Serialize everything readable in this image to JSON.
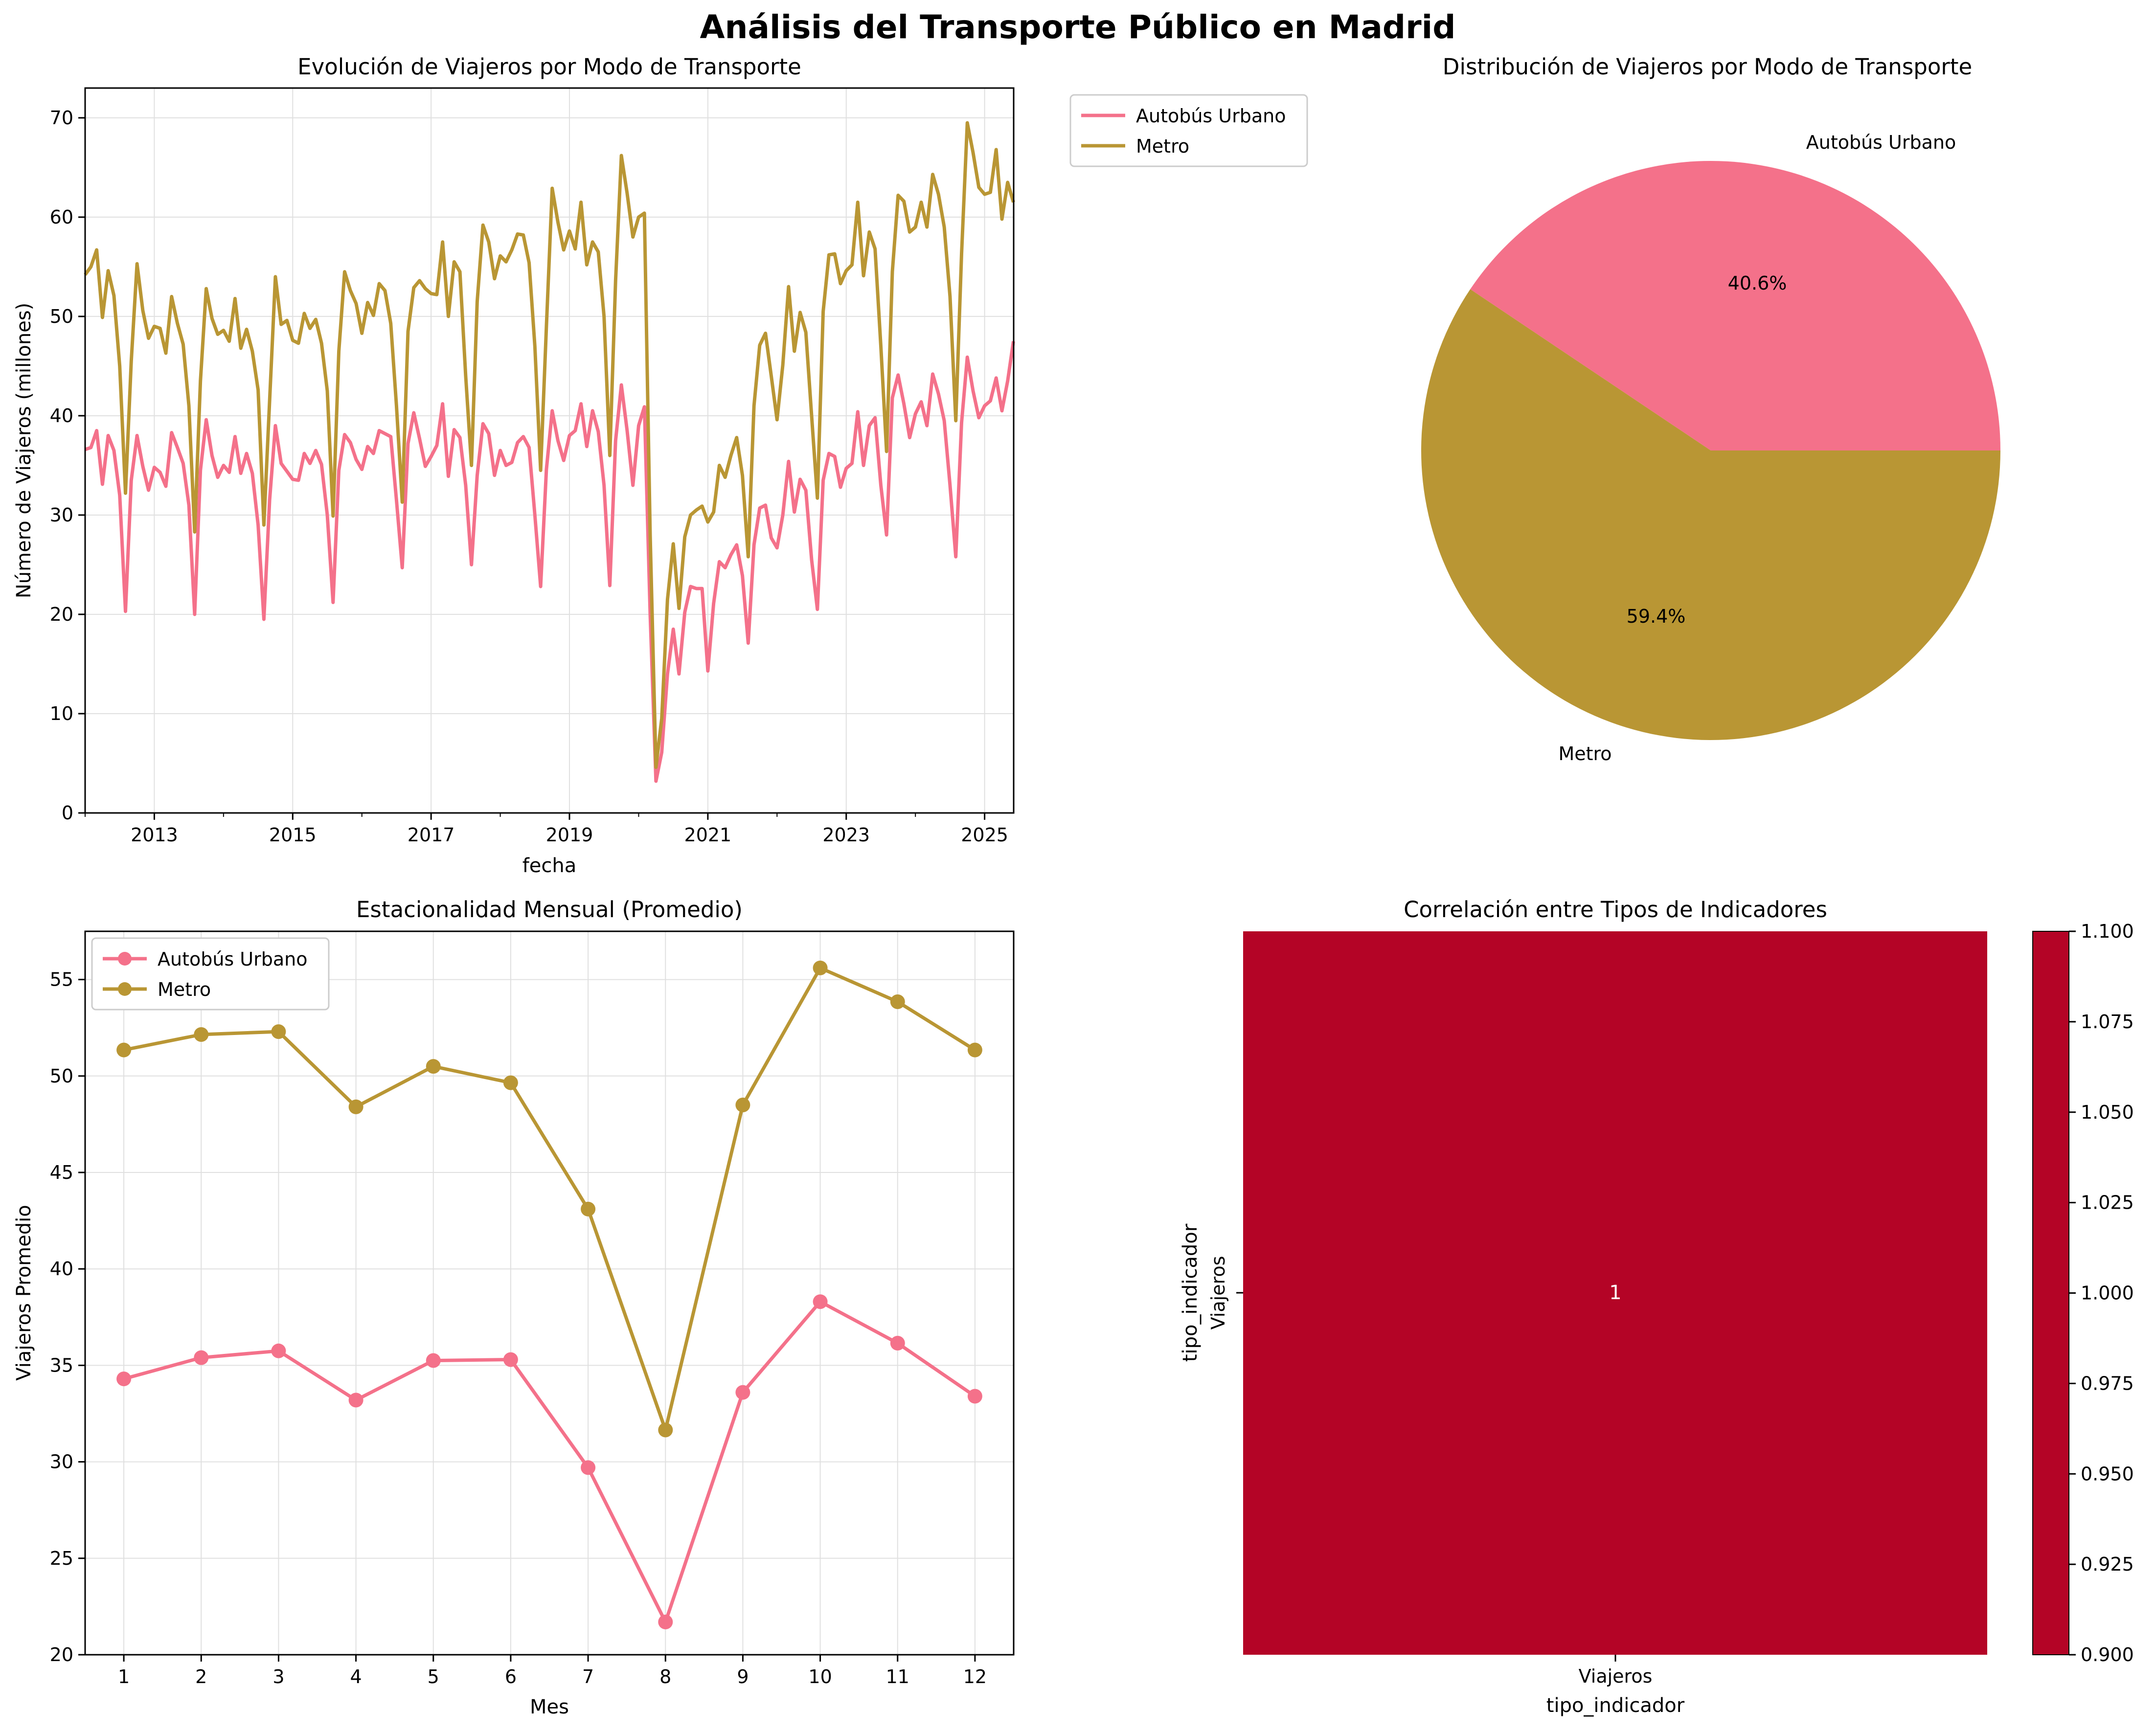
{
  "figure": {
    "title": "Análisis del Transporte Público en Madrid",
    "colors": {
      "bus": "#f4718a",
      "metro": "#b99634",
      "heat": "#b40426",
      "grid": "#e0e0e0"
    }
  },
  "chart_data": [
    {
      "id": "timeseries",
      "type": "line",
      "title": "Evolución de Viajeros por Modo de Transporte",
      "xlabel": "fecha",
      "ylabel": "Número de Viajeros (millones)",
      "xlim": [
        2012.0,
        2025.42
      ],
      "ylim": [
        0,
        73
      ],
      "x_ticks": [
        2013,
        2015,
        2017,
        2019,
        2021,
        2023,
        2025
      ],
      "y_ticks": [
        0,
        10,
        20,
        30,
        40,
        50,
        60,
        70
      ],
      "grid": true,
      "legend_position": "outside-right-top",
      "series": [
        {
          "name": "Autobús Urbano",
          "values": [
            36.6,
            36.8,
            38.5,
            33.1,
            38.0,
            36.5,
            32.0,
            20.3,
            33.5,
            38.0,
            34.9,
            32.5,
            34.8,
            34.3,
            32.9,
            38.3,
            36.8,
            35.2,
            31.0,
            20.0,
            34.5,
            39.6,
            36.0,
            33.8,
            35.0,
            34.3,
            37.9,
            34.2,
            36.2,
            34.2,
            29.0,
            19.5,
            31.5,
            39.0,
            35.2,
            34.4,
            33.6,
            33.5,
            36.2,
            35.2,
            36.5,
            35.1,
            30.0,
            21.2,
            34.5,
            38.1,
            37.3,
            35.6,
            34.6,
            36.9,
            36.2,
            38.5,
            38.2,
            37.9,
            31.5,
            24.7,
            37.2,
            40.3,
            37.7,
            34.9,
            35.9,
            37.0,
            41.2,
            33.9,
            38.6,
            37.8,
            33.0,
            25.0,
            34.0,
            39.2,
            38.2,
            34.0,
            36.5,
            35.0,
            35.3,
            37.3,
            37.9,
            36.8,
            30.0,
            22.8,
            34.6,
            40.5,
            37.5,
            35.5,
            38.0,
            38.5,
            41.2,
            36.9,
            40.5,
            38.4,
            33.0,
            22.9,
            37.5,
            43.1,
            38.5,
            33.0,
            39.0,
            40.9,
            20.0,
            3.2,
            6.1,
            14.0,
            18.5,
            14.0,
            20.2,
            22.8,
            22.6,
            22.6,
            14.3,
            21.1,
            25.3,
            24.7,
            26.0,
            27.0,
            23.9,
            17.1,
            27.0,
            30.7,
            31.0,
            27.7,
            26.7,
            30.0,
            35.4,
            30.3,
            33.6,
            32.5,
            25.5,
            20.5,
            33.5,
            36.2,
            35.9,
            32.8,
            34.7,
            35.2,
            40.4,
            35.0,
            39.0,
            39.8,
            33.0,
            28.0,
            41.8,
            44.1,
            41.2,
            37.8,
            40.2,
            41.4,
            39.0,
            44.2,
            42.2,
            39.5,
            33.0,
            25.8,
            39.3,
            45.9,
            42.5,
            39.8,
            41.0,
            41.5,
            43.8,
            40.5,
            43.5,
            47.5
          ]
        },
        {
          "name": "Metro",
          "values": [
            54.2,
            55.0,
            56.7,
            49.9,
            54.6,
            52.1,
            45.0,
            32.2,
            45.5,
            55.3,
            50.6,
            47.8,
            49.0,
            48.8,
            46.3,
            52.0,
            49.3,
            47.2,
            41.0,
            28.3,
            43.5,
            52.8,
            49.8,
            48.2,
            48.6,
            47.5,
            51.8,
            46.8,
            48.7,
            46.5,
            42.6,
            29.0,
            41.5,
            54.0,
            49.2,
            49.6,
            47.6,
            47.3,
            50.3,
            48.8,
            49.7,
            47.3,
            42.5,
            29.9,
            46.5,
            54.5,
            52.6,
            51.3,
            48.3,
            51.4,
            50.1,
            53.3,
            52.6,
            49.3,
            41.0,
            31.3,
            48.5,
            52.9,
            53.6,
            52.8,
            52.3,
            52.2,
            57.5,
            50.0,
            55.5,
            54.5,
            44.0,
            35.0,
            51.5,
            59.2,
            57.5,
            53.8,
            56.1,
            55.5,
            56.7,
            58.3,
            58.2,
            55.4,
            47.0,
            34.5,
            49.0,
            62.9,
            59.5,
            56.7,
            58.6,
            56.8,
            61.5,
            55.2,
            57.5,
            56.5,
            50.0,
            36.0,
            53.6,
            66.2,
            62.4,
            58.0,
            60.0,
            60.4,
            28.0,
            4.6,
            9.5,
            21.5,
            27.1,
            20.6,
            27.8,
            30.0,
            30.5,
            30.9,
            29.3,
            30.3,
            35.0,
            33.8,
            36.0,
            37.8,
            34.0,
            25.8,
            41.0,
            47.1,
            48.3,
            44.0,
            39.6,
            45.1,
            53.0,
            46.5,
            50.4,
            48.4,
            40.0,
            31.7,
            50.5,
            56.2,
            56.3,
            53.3,
            54.6,
            55.2,
            61.5,
            54.1,
            58.5,
            56.8,
            47.0,
            36.4,
            54.5,
            62.2,
            61.6,
            58.5,
            59.0,
            61.5,
            59.0,
            64.3,
            62.3,
            59.0,
            52.0,
            39.5,
            56.3,
            69.5,
            66.5,
            63.0,
            62.3,
            62.5,
            66.8,
            59.8,
            63.5,
            61.5
          ]
        }
      ]
    },
    {
      "id": "pie",
      "type": "pie",
      "title": "Distribución de Viajeros por Modo de Transporte",
      "labels": [
        "Autobús Urbano",
        "Metro"
      ],
      "values": [
        40.6,
        59.4
      ],
      "value_labels": [
        "40.6%",
        "59.4%"
      ]
    },
    {
      "id": "seasonal",
      "type": "line",
      "title": "Estacionalidad Mensual (Promedio)",
      "xlabel": "Mes",
      "ylabel": "Viajeros Promedio",
      "categories": [
        "1",
        "2",
        "3",
        "4",
        "5",
        "6",
        "7",
        "8",
        "9",
        "10",
        "11",
        "12"
      ],
      "xlim": [
        0.5,
        12.5
      ],
      "ylim": [
        20,
        57.5
      ],
      "y_ticks": [
        20,
        25,
        30,
        35,
        40,
        45,
        50,
        55
      ],
      "grid": true,
      "legend_position": "top-left",
      "series": [
        {
          "name": "Autobús Urbano",
          "values": [
            34.3,
            35.4,
            35.75,
            33.2,
            35.25,
            35.3,
            29.7,
            21.7,
            33.6,
            38.3,
            36.15,
            33.4
          ]
        },
        {
          "name": "Metro",
          "values": [
            51.35,
            52.15,
            52.3,
            48.4,
            50.5,
            49.65,
            43.1,
            31.65,
            48.5,
            55.6,
            53.85,
            51.35
          ]
        }
      ]
    },
    {
      "id": "heatmap",
      "type": "heatmap",
      "title": "Correlación entre Tipos de Indicadores",
      "xlabel": "tipo_indicador",
      "ylabel": "tipo_indicador",
      "x_categories": [
        "Viajeros"
      ],
      "y_categories": [
        "Viajeros"
      ],
      "values": [
        [
          1
        ]
      ],
      "cell_labels": [
        [
          "1"
        ]
      ],
      "colorbar_range": [
        0.9,
        1.1
      ],
      "colorbar_ticks": [
        "1.100",
        "1.075",
        "1.050",
        "1.025",
        "1.000",
        "0.975",
        "0.950",
        "0.925",
        "0.900"
      ]
    }
  ]
}
